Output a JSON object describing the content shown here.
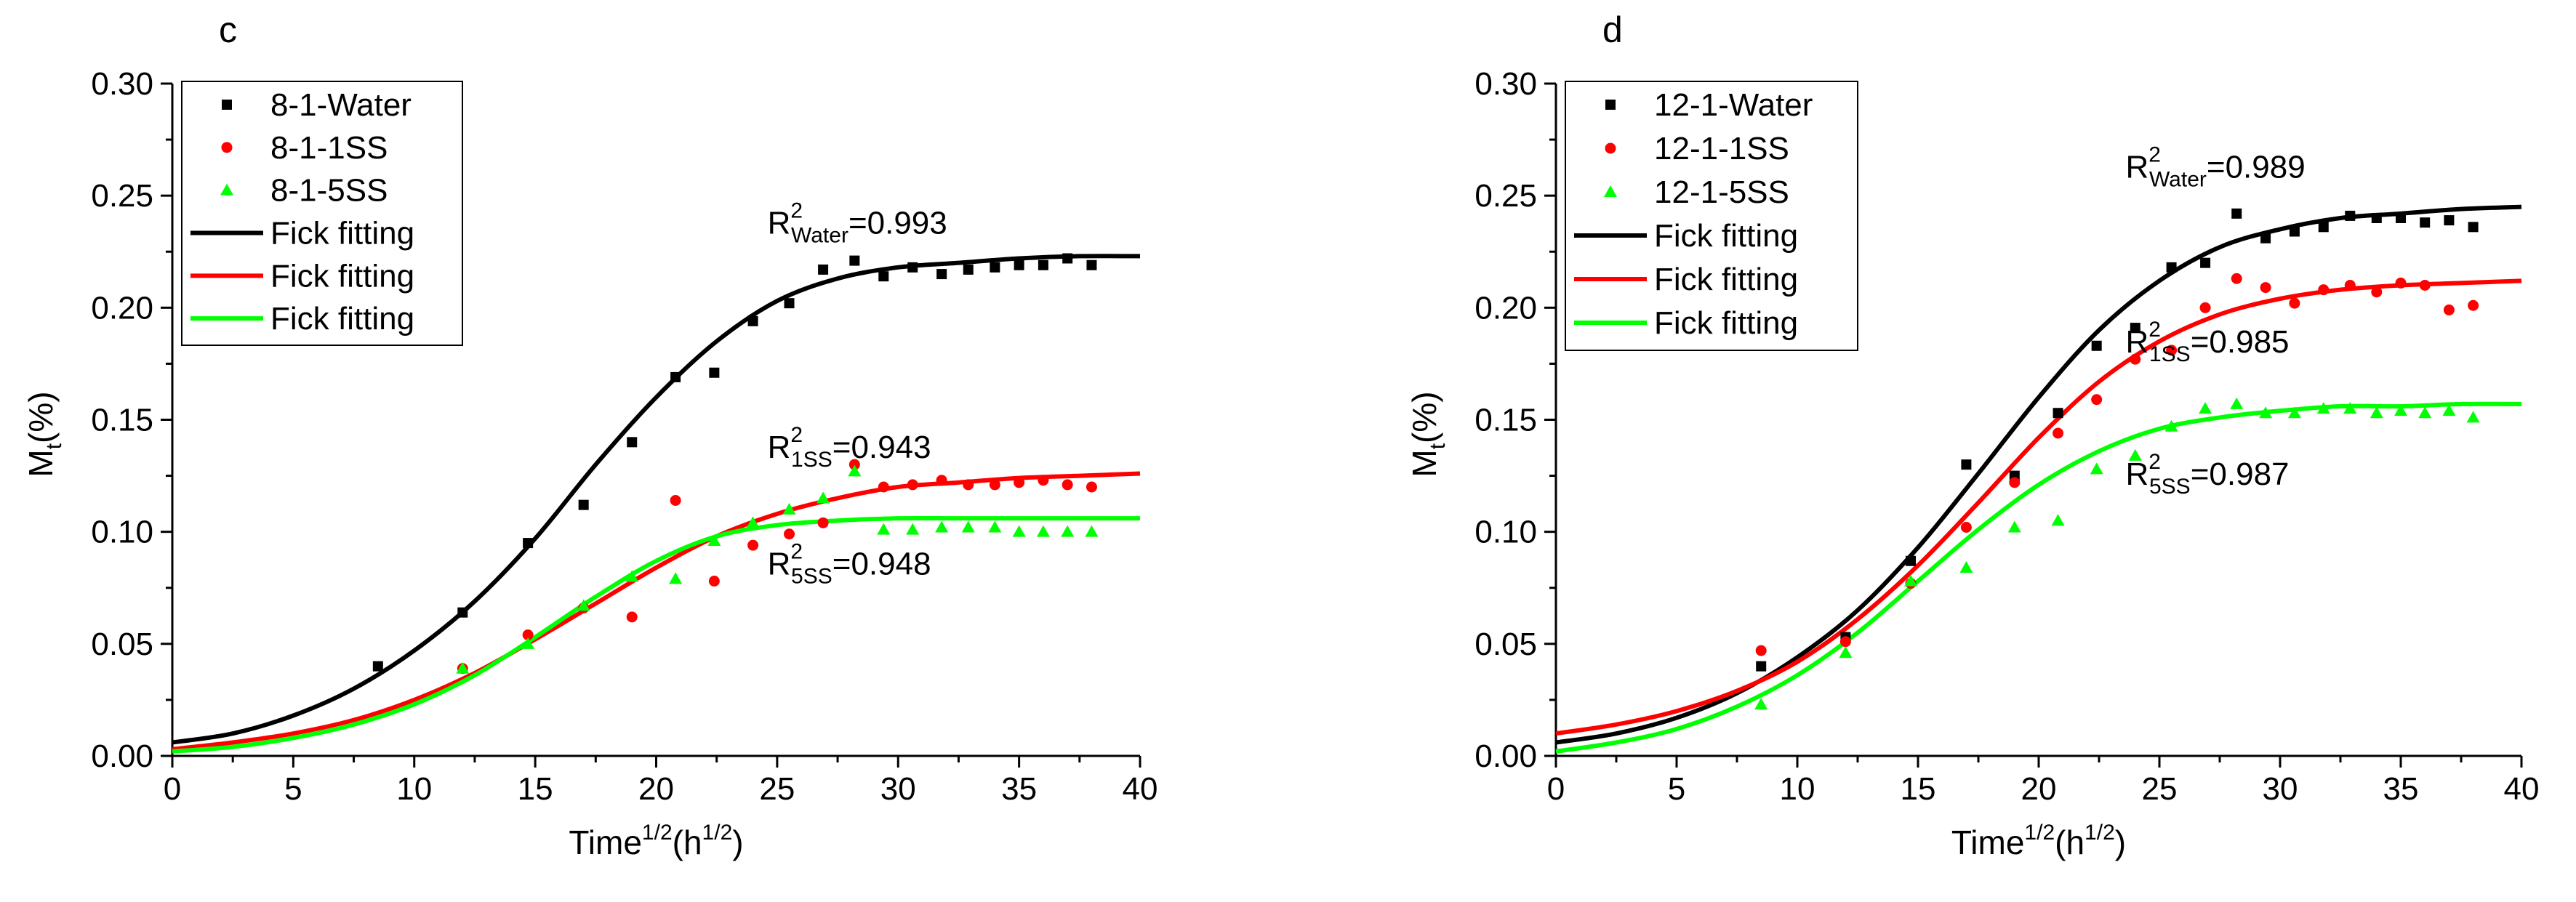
{
  "chart_data": [
    {
      "type": "scatter",
      "panel_label": "c",
      "xlabel": {
        "main": "Time",
        "sup": "1/2",
        "unit_open": "(h",
        "unit_sup": "1/2",
        "unit_close": ")"
      },
      "ylabel": {
        "main": "M",
        "sub": "t",
        "unit": "(%)"
      },
      "xlim": [
        0,
        40
      ],
      "ylim": [
        0,
        0.3
      ],
      "xticks": [
        0,
        5,
        10,
        15,
        20,
        25,
        30,
        35,
        40
      ],
      "yticks": [
        0,
        0.05,
        0.1,
        0.15,
        0.2,
        0.25,
        0.3
      ],
      "xtick_labels": [
        "0",
        "5",
        "10",
        "15",
        "20",
        "25",
        "30",
        "35",
        "40"
      ],
      "ytick_labels": [
        "0.00",
        "0.05",
        "0.10",
        "0.15",
        "0.20",
        "0.25",
        "0.30"
      ],
      "legend_position": "top-left",
      "series": [
        {
          "name": "8-1-Water",
          "marker": "square",
          "color": "#000000",
          "x": [
            8.5,
            12,
            14.7,
            17,
            19,
            20.8,
            22.4,
            24,
            25.5,
            26.9,
            28.2,
            29.4,
            30.6,
            31.8,
            32.9,
            34,
            35,
            36,
            37,
            38
          ],
          "y": [
            0.04,
            0.064,
            0.095,
            0.112,
            0.14,
            0.169,
            0.171,
            0.194,
            0.202,
            0.217,
            0.221,
            0.214,
            0.218,
            0.215,
            0.217,
            0.218,
            0.219,
            0.219,
            0.222,
            0.219
          ]
        },
        {
          "name": "8-1-1SS",
          "marker": "circle",
          "color": "#ff0000",
          "x": [
            12,
            14.7,
            17,
            19,
            20.8,
            22.4,
            24,
            25.5,
            26.9,
            28.2,
            29.4,
            30.6,
            31.8,
            32.9,
            34,
            35,
            36,
            37,
            38
          ],
          "y": [
            0.039,
            0.054,
            0.066,
            0.062,
            0.114,
            0.078,
            0.094,
            0.099,
            0.104,
            0.13,
            0.12,
            0.121,
            0.123,
            0.121,
            0.121,
            0.122,
            0.123,
            0.121,
            0.12
          ]
        },
        {
          "name": "8-1-5SS",
          "marker": "triangle",
          "color": "#00ff00",
          "x": [
            12,
            14.7,
            17,
            19,
            20.8,
            22.4,
            24,
            25.5,
            26.9,
            28.2,
            29.4,
            30.6,
            31.8,
            32.9,
            34,
            35,
            36,
            37,
            38
          ],
          "y": [
            0.039,
            0.05,
            0.067,
            0.08,
            0.079,
            0.096,
            0.104,
            0.11,
            0.115,
            0.127,
            0.101,
            0.101,
            0.102,
            0.102,
            0.102,
            0.1,
            0.1,
            0.1,
            0.1
          ]
        },
        {
          "name": "Fick fitting",
          "kind": "line",
          "color": "#000000",
          "x": [
            0,
            2.5,
            5,
            7.5,
            10,
            12.5,
            15,
            17.5,
            20,
            22.5,
            25,
            27.5,
            30,
            32.5,
            35,
            37.5,
            40
          ],
          "y": [
            0.006,
            0.01,
            0.018,
            0.03,
            0.047,
            0.069,
            0.097,
            0.13,
            0.16,
            0.185,
            0.203,
            0.213,
            0.218,
            0.22,
            0.222,
            0.223,
            0.223
          ]
        },
        {
          "name": "Fick fitting",
          "kind": "line",
          "color": "#ff0000",
          "x": [
            0,
            2.5,
            5,
            7.5,
            10,
            12.5,
            15,
            17.5,
            20,
            22.5,
            25,
            27.5,
            30,
            32.5,
            35,
            37.5,
            40
          ],
          "y": [
            0.003,
            0.006,
            0.01,
            0.016,
            0.025,
            0.037,
            0.052,
            0.068,
            0.084,
            0.098,
            0.108,
            0.115,
            0.12,
            0.122,
            0.124,
            0.125,
            0.126
          ]
        },
        {
          "name": "Fick fitting",
          "kind": "line",
          "color": "#00ff00",
          "x": [
            0,
            2.5,
            5,
            7.5,
            10,
            12.5,
            15,
            17.5,
            20,
            22.5,
            25,
            27.5,
            30,
            32.5,
            35,
            37.5,
            40
          ],
          "y": [
            0.002,
            0.004,
            0.008,
            0.014,
            0.023,
            0.036,
            0.053,
            0.071,
            0.087,
            0.098,
            0.103,
            0.105,
            0.106,
            0.106,
            0.106,
            0.106,
            0.106
          ]
        }
      ],
      "annotations": [
        {
          "base": "R",
          "sup": "2",
          "sub": "Water",
          "value": "=0.993",
          "x": 24.6,
          "y": 0.233
        },
        {
          "base": "R",
          "sup": "2",
          "sub": "1SS",
          "value": "=0.943",
          "x": 24.6,
          "y": 0.133
        },
        {
          "base": "R",
          "sup": "2",
          "sub": "5SS",
          "value": "=0.948",
          "x": 24.6,
          "y": 0.081
        }
      ]
    },
    {
      "type": "scatter",
      "panel_label": "d",
      "xlabel": {
        "main": "Time",
        "sup": "1/2",
        "unit_open": "(h",
        "unit_sup": "1/2",
        "unit_close": ")"
      },
      "ylabel": {
        "main": "M",
        "sub": "t",
        "unit": "(%)"
      },
      "xlim": [
        0,
        40
      ],
      "ylim": [
        0,
        0.3
      ],
      "xticks": [
        0,
        5,
        10,
        15,
        20,
        25,
        30,
        35,
        40
      ],
      "yticks": [
        0,
        0.05,
        0.1,
        0.15,
        0.2,
        0.25,
        0.3
      ],
      "xtick_labels": [
        "0",
        "5",
        "10",
        "15",
        "20",
        "25",
        "30",
        "35",
        "40"
      ],
      "ytick_labels": [
        "0.00",
        "0.05",
        "0.10",
        "0.15",
        "0.20",
        "0.25",
        "0.30"
      ],
      "legend_position": "top-left",
      "series": [
        {
          "name": "12-1-Water",
          "marker": "square",
          "color": "#000000",
          "x": [
            8.5,
            12,
            14.7,
            17,
            19,
            20.8,
            22.4,
            24,
            25.5,
            26.9,
            28.2,
            29.4,
            30.6,
            31.8,
            32.9,
            34,
            35,
            36,
            37,
            38
          ],
          "y": [
            0.04,
            0.053,
            0.087,
            0.13,
            0.125,
            0.153,
            0.183,
            0.191,
            0.218,
            0.22,
            0.242,
            0.231,
            0.234,
            0.236,
            0.241,
            0.24,
            0.24,
            0.238,
            0.239,
            0.236
          ]
        },
        {
          "name": "12-1-1SS",
          "marker": "circle",
          "color": "#ff0000",
          "x": [
            8.5,
            12,
            14.7,
            17,
            19,
            20.8,
            22.4,
            24,
            25.5,
            26.9,
            28.2,
            29.4,
            30.6,
            31.8,
            32.9,
            34,
            35,
            36,
            37,
            38
          ],
          "y": [
            0.047,
            0.051,
            0.077,
            0.102,
            0.122,
            0.144,
            0.159,
            0.177,
            0.181,
            0.2,
            0.213,
            0.209,
            0.202,
            0.208,
            0.21,
            0.207,
            0.211,
            0.21,
            0.199,
            0.201
          ]
        },
        {
          "name": "12-1-5SS",
          "marker": "triangle",
          "color": "#00ff00",
          "x": [
            8.5,
            12,
            14.7,
            17,
            19,
            20.8,
            22.4,
            24,
            25.5,
            26.9,
            28.2,
            29.4,
            30.6,
            31.8,
            32.9,
            34,
            35,
            36,
            37,
            38
          ],
          "y": [
            0.023,
            0.046,
            0.078,
            0.084,
            0.102,
            0.105,
            0.128,
            0.134,
            0.147,
            0.155,
            0.157,
            0.153,
            0.153,
            0.155,
            0.155,
            0.153,
            0.154,
            0.153,
            0.154,
            0.151
          ]
        },
        {
          "name": "Fick fitting",
          "kind": "line",
          "color": "#000000",
          "x": [
            0,
            2.5,
            5,
            7.5,
            10,
            12.5,
            15,
            17.5,
            20,
            22.5,
            25,
            27.5,
            30,
            32.5,
            35,
            37.5,
            40
          ],
          "y": [
            0.006,
            0.01,
            0.017,
            0.028,
            0.044,
            0.065,
            0.093,
            0.126,
            0.16,
            0.19,
            0.212,
            0.227,
            0.235,
            0.24,
            0.242,
            0.244,
            0.245
          ]
        },
        {
          "name": "Fick fitting",
          "kind": "line",
          "color": "#ff0000",
          "x": [
            0,
            2.5,
            5,
            7.5,
            10,
            12.5,
            15,
            17.5,
            20,
            22.5,
            25,
            27.5,
            30,
            32.5,
            35,
            37.5,
            40
          ],
          "y": [
            0.01,
            0.014,
            0.02,
            0.029,
            0.042,
            0.061,
            0.085,
            0.113,
            0.142,
            0.167,
            0.185,
            0.197,
            0.204,
            0.208,
            0.21,
            0.211,
            0.212
          ]
        },
        {
          "name": "Fick fitting",
          "kind": "line",
          "color": "#00ff00",
          "x": [
            0,
            2.5,
            5,
            7.5,
            10,
            12.5,
            15,
            17.5,
            20,
            22.5,
            25,
            27.5,
            30,
            32.5,
            35,
            37.5,
            40
          ],
          "y": [
            0.002,
            0.006,
            0.012,
            0.022,
            0.036,
            0.055,
            0.078,
            0.101,
            0.121,
            0.136,
            0.146,
            0.151,
            0.154,
            0.156,
            0.156,
            0.157,
            0.157
          ]
        }
      ],
      "annotations": [
        {
          "base": "R",
          "sup": "2",
          "sub": "Water",
          "value": "=0.989",
          "x": 23.6,
          "y": 0.258
        },
        {
          "base": "R",
          "sup": "2",
          "sub": "1SS",
          "value": "=0.985",
          "x": 23.6,
          "y": 0.18
        },
        {
          "base": "R",
          "sup": "2",
          "sub": "5SS",
          "value": "=0.987",
          "x": 23.6,
          "y": 0.121
        }
      ]
    }
  ]
}
